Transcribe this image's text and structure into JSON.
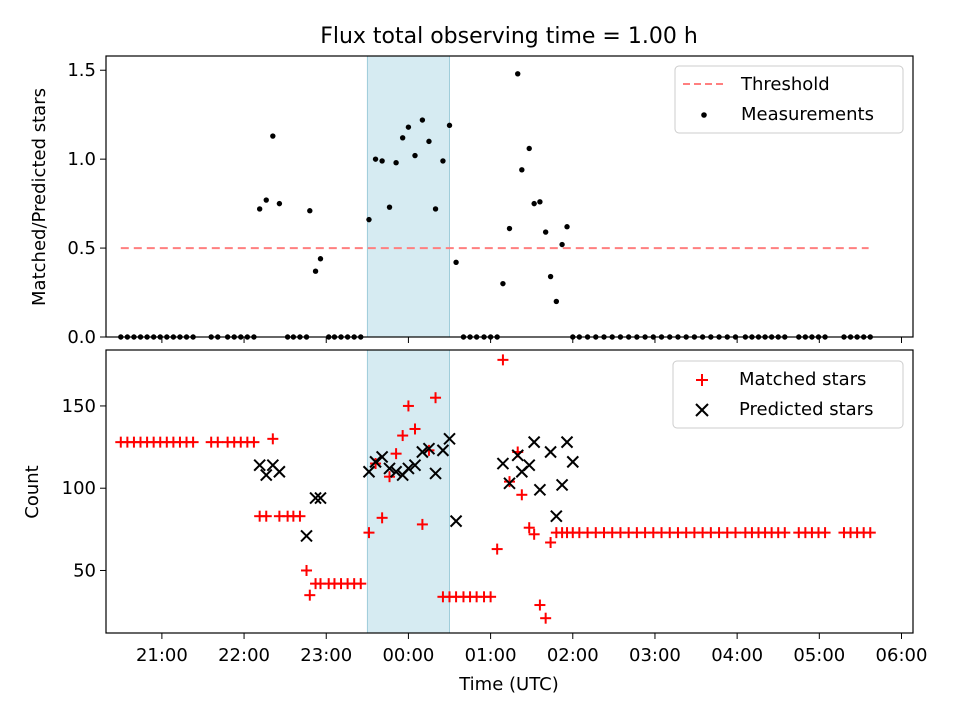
{
  "chart_data": [
    {
      "type": "scatter",
      "panel": "top",
      "title": "Flux total observing time = 1.00 h",
      "xlabel": "",
      "ylabel": "Matched/Predicted stars",
      "xlim": [
        20.32,
        30.14
      ],
      "ylim": [
        0,
        1.58
      ],
      "yticks": [
        0.0,
        0.5,
        1.0,
        1.5
      ],
      "ytick_labels": [
        "0.0",
        "0.5",
        "1.0",
        "1.5"
      ],
      "xticks": [
        21,
        22,
        23,
        24,
        25,
        26,
        27,
        28,
        29,
        30
      ],
      "shaded_span": [
        23.5,
        24.5
      ],
      "legend_position": "upper right",
      "threshold": {
        "name": "Threshold",
        "value": 0.5,
        "x_range": [
          20.5,
          29.6
        ],
        "color": "#ff7f7f"
      },
      "series": [
        {
          "name": "Measurements",
          "color": "#000000",
          "x": [
            20.5,
            20.58,
            20.66,
            20.74,
            20.82,
            20.9,
            20.98,
            21.06,
            21.14,
            21.22,
            21.3,
            21.38,
            21.6,
            21.68,
            21.8,
            21.88,
            21.96,
            22.04,
            22.12,
            22.19,
            22.27,
            22.35,
            22.43,
            22.53,
            22.6,
            22.68,
            22.76,
            22.8,
            22.87,
            22.93,
            23.03,
            23.1,
            23.18,
            23.26,
            23.34,
            23.42,
            23.52,
            23.6,
            23.68,
            23.77,
            23.85,
            23.93,
            24.0,
            24.08,
            24.17,
            24.25,
            24.33,
            24.42,
            24.5,
            24.58,
            24.67,
            24.75,
            24.83,
            24.92,
            25.0,
            25.08,
            25.15,
            25.23,
            25.33,
            25.38,
            25.47,
            25.53,
            25.6,
            25.67,
            25.73,
            25.8,
            25.87,
            25.93,
            26.0,
            26.08,
            26.18,
            26.28,
            26.38,
            26.48,
            26.58,
            26.68,
            26.78,
            26.88,
            26.98,
            27.08,
            27.18,
            27.28,
            27.38,
            27.48,
            27.58,
            27.68,
            27.78,
            27.88,
            27.98,
            28.1,
            28.18,
            28.26,
            28.34,
            28.42,
            28.5,
            28.58,
            28.75,
            28.83,
            28.91,
            28.99,
            29.07,
            29.3,
            29.38,
            29.46,
            29.54,
            29.62
          ],
          "y": [
            0,
            0,
            0,
            0,
            0,
            0,
            0,
            0,
            0,
            0,
            0,
            0,
            0,
            0,
            0,
            0,
            0,
            0,
            0,
            0.72,
            0.77,
            1.13,
            0.75,
            0,
            0,
            0,
            0,
            0.71,
            0.37,
            0.44,
            0,
            0,
            0,
            0,
            0,
            0,
            0.66,
            1.0,
            0.99,
            0.73,
            0.98,
            1.12,
            1.18,
            1.02,
            1.22,
            1.1,
            0.72,
            0.99,
            1.19,
            0.42,
            0,
            0,
            0,
            0,
            0,
            0,
            0.3,
            0.61,
            1.48,
            0.94,
            1.06,
            0.75,
            0.76,
            0.59,
            0.34,
            0.2,
            0.52,
            0.62,
            0,
            0,
            0,
            0,
            0,
            0,
            0,
            0,
            0,
            0,
            0,
            0,
            0,
            0,
            0,
            0,
            0,
            0,
            0,
            0,
            0,
            0,
            0,
            0,
            0,
            0,
            0,
            0,
            0,
            0,
            0,
            0,
            0,
            0,
            0,
            0,
            0,
            0
          ]
        }
      ]
    },
    {
      "type": "scatter",
      "panel": "bottom",
      "title": "",
      "xlabel": "Time (UTC)",
      "ylabel": "Count",
      "xlim": [
        20.32,
        30.14
      ],
      "ylim": [
        12,
        184
      ],
      "yticks": [
        50,
        100,
        150
      ],
      "ytick_labels": [
        "50",
        "100",
        "150"
      ],
      "xticks": [
        21,
        22,
        23,
        24,
        25,
        26,
        27,
        28,
        29,
        30
      ],
      "xtick_labels": [
        "21:00",
        "22:00",
        "23:00",
        "00:00",
        "01:00",
        "02:00",
        "03:00",
        "04:00",
        "05:00",
        "06:00"
      ],
      "shaded_span": [
        23.5,
        24.5
      ],
      "legend_position": "upper right",
      "series": [
        {
          "name": "Matched stars",
          "marker": "plus",
          "color": "#ff0000",
          "x": [
            20.5,
            20.58,
            20.66,
            20.74,
            20.82,
            20.9,
            20.98,
            21.06,
            21.14,
            21.22,
            21.3,
            21.38,
            21.6,
            21.68,
            21.8,
            21.88,
            21.96,
            22.04,
            22.12,
            22.19,
            22.27,
            22.35,
            22.43,
            22.53,
            22.6,
            22.68,
            22.76,
            22.8,
            22.87,
            22.93,
            23.03,
            23.1,
            23.18,
            23.26,
            23.34,
            23.42,
            23.52,
            23.6,
            23.68,
            23.77,
            23.85,
            23.93,
            24.0,
            24.08,
            24.17,
            24.25,
            24.33,
            24.42,
            24.5,
            24.58,
            24.67,
            24.75,
            24.83,
            24.92,
            25.0,
            25.08,
            25.15,
            25.23,
            25.33,
            25.38,
            25.47,
            25.53,
            25.6,
            25.67,
            25.73,
            25.8,
            25.87,
            25.93,
            26.0,
            26.08,
            26.18,
            26.28,
            26.38,
            26.48,
            26.58,
            26.68,
            26.78,
            26.88,
            26.98,
            27.08,
            27.18,
            27.28,
            27.38,
            27.48,
            27.58,
            27.68,
            27.78,
            27.88,
            27.98,
            28.1,
            28.18,
            28.26,
            28.34,
            28.42,
            28.5,
            28.58,
            28.75,
            28.83,
            28.91,
            28.99,
            29.07,
            29.3,
            29.38,
            29.46,
            29.54,
            29.62
          ],
          "y": [
            128,
            128,
            128,
            128,
            128,
            128,
            128,
            128,
            128,
            128,
            128,
            128,
            128,
            128,
            128,
            128,
            128,
            128,
            128,
            83,
            83,
            130,
            83,
            83,
            83,
            83,
            50,
            35,
            42,
            42,
            42,
            42,
            42,
            42,
            42,
            42,
            73,
            115,
            82,
            107,
            121,
            132,
            150,
            136,
            78,
            123,
            155,
            34,
            34,
            34,
            34,
            34,
            34,
            34,
            34,
            63,
            178,
            104,
            122,
            96,
            76,
            72,
            29,
            21,
            67,
            73,
            73,
            73,
            73,
            73,
            73,
            73,
            73,
            73,
            73,
            73,
            73,
            73,
            73,
            73,
            73,
            73,
            73,
            73,
            73,
            73,
            73,
            73,
            73,
            73,
            73,
            73,
            73,
            73,
            73,
            73,
            73,
            73,
            73,
            73,
            73,
            73,
            73,
            73,
            73,
            73
          ]
        },
        {
          "name": "Predicted stars",
          "marker": "x",
          "color": "#000000",
          "x": [
            22.19,
            22.27,
            22.35,
            22.43,
            22.76,
            22.87,
            22.93,
            23.52,
            23.6,
            23.68,
            23.77,
            23.85,
            23.93,
            24.0,
            24.08,
            24.17,
            24.25,
            24.33,
            24.42,
            24.5,
            24.58,
            25.15,
            25.23,
            25.33,
            25.38,
            25.47,
            25.53,
            25.6,
            25.73,
            25.8,
            25.87,
            25.93,
            26.0
          ],
          "y": [
            114,
            108,
            114,
            110,
            71,
            94,
            94,
            110,
            116,
            119,
            112,
            110,
            108,
            112,
            114,
            122,
            124,
            109,
            123,
            130,
            80,
            115,
            103,
            120,
            110,
            114,
            128,
            99,
            122,
            83,
            102,
            128,
            116
          ]
        }
      ]
    }
  ]
}
